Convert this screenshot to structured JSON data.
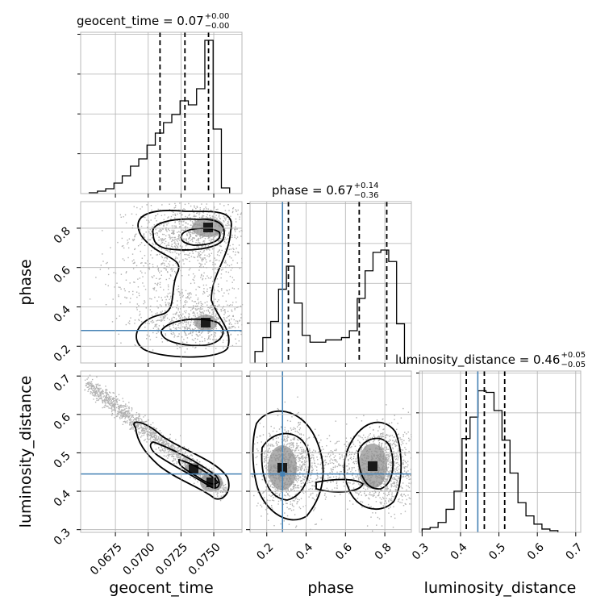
{
  "colors": {
    "truth": "#4682b4",
    "hist": "#000000",
    "grid": "#b0b0b0",
    "scatter": "#555555"
  },
  "chart_data": {
    "type": "corner",
    "parameters": [
      "geocent_time",
      "phase",
      "luminosity_distance"
    ],
    "truths": {
      "phase": 0.28,
      "luminosity_distance": 0.445
    },
    "axes": {
      "geocent_time": {
        "label": "geocent_time",
        "range": [
          0.06485,
          0.07715
        ],
        "ticks": [
          0.0675,
          0.07,
          0.0725,
          0.075
        ],
        "tick_labels": [
          "0.0675",
          "0.0700",
          "0.0725",
          "0.0750"
        ]
      },
      "phase": {
        "label": "phase",
        "range": [
          0.115,
          0.935
        ],
        "ticks": [
          0.2,
          0.4,
          0.6,
          0.8
        ],
        "tick_labels": [
          "0.2",
          "0.4",
          "0.6",
          "0.8"
        ]
      },
      "luminosity_distance": {
        "label": "luminosity_distance",
        "range": [
          0.293,
          0.713
        ],
        "ticks": [
          0.3,
          0.4,
          0.5,
          0.6,
          0.7
        ],
        "tick_labels": [
          "0.3",
          "0.4",
          "0.5",
          "0.6",
          "0.7"
        ]
      }
    },
    "diagonal": [
      {
        "param": "geocent_time",
        "title": {
          "main": "geocent_time = 0.07",
          "sup": "+0.00",
          "sub": "−0.00"
        },
        "quantiles": [
          0.0709,
          0.0728,
          0.0746
        ],
        "bin_edges": [
          0.0655,
          0.06613,
          0.06676,
          0.06739,
          0.06802,
          0.06865,
          0.06928,
          0.06991,
          0.07054,
          0.07117,
          0.0718,
          0.07243,
          0.07306,
          0.07369,
          0.07432,
          0.07495,
          0.07558,
          0.07621
        ],
        "counts": [
          1,
          3,
          6,
          13,
          22,
          34,
          43,
          60,
          75,
          88,
          98,
          115,
          110,
          130,
          190,
          80,
          7
        ],
        "ymax": 200
      },
      {
        "param": "phase",
        "title": {
          "main": "phase = 0.67",
          "sup": "+0.14",
          "sub": "−0.36"
        },
        "quantiles": [
          0.31,
          0.67,
          0.81
        ],
        "bin_edges": [
          0.14,
          0.18,
          0.22,
          0.26,
          0.3,
          0.34,
          0.38,
          0.42,
          0.46,
          0.5,
          0.54,
          0.58,
          0.62,
          0.66,
          0.7,
          0.74,
          0.78,
          0.82,
          0.86,
          0.9
        ],
        "counts": [
          10,
          22,
          36,
          64,
          84,
          52,
          24,
          18,
          18,
          20,
          20,
          22,
          28,
          56,
          80,
          96,
          98,
          88,
          34
        ],
        "ymax": 140
      },
      {
        "param": "luminosity_distance",
        "title": {
          "main": "luminosity_distance = 0.46",
          "sup": "+0.05",
          "sub": "−0.05"
        },
        "quantiles": [
          0.415,
          0.462,
          0.515
        ],
        "bin_edges": [
          0.3,
          0.3208,
          0.3416,
          0.3624,
          0.3832,
          0.404,
          0.4248,
          0.4456,
          0.4664,
          0.4872,
          0.508,
          0.5288,
          0.5496,
          0.5704,
          0.5912,
          0.612,
          0.6328,
          0.6536
        ],
        "counts": [
          2,
          3,
          6,
          14,
          25,
          57,
          70,
          86,
          85,
          74,
          56,
          36,
          18,
          10,
          5,
          2,
          1
        ],
        "ymax": 98
      }
    ],
    "joint": [
      {
        "x": "geocent_time",
        "y": "phase",
        "contour_levels": 4,
        "modes": [
          {
            "x": 0.0745,
            "y": 0.8
          },
          {
            "x": 0.0745,
            "y": 0.32
          }
        ]
      },
      {
        "x": "geocent_time",
        "y": "luminosity_distance",
        "contour_levels": 4,
        "modes": [
          {
            "x": 0.0745,
            "y": 0.41
          },
          {
            "x": 0.0728,
            "y": 0.455
          }
        ]
      },
      {
        "x": "phase",
        "y": "luminosity_distance",
        "contour_levels": 4,
        "modes": [
          {
            "x": 0.28,
            "y": 0.46
          },
          {
            "x": 0.79,
            "y": 0.46
          }
        ]
      }
    ]
  }
}
